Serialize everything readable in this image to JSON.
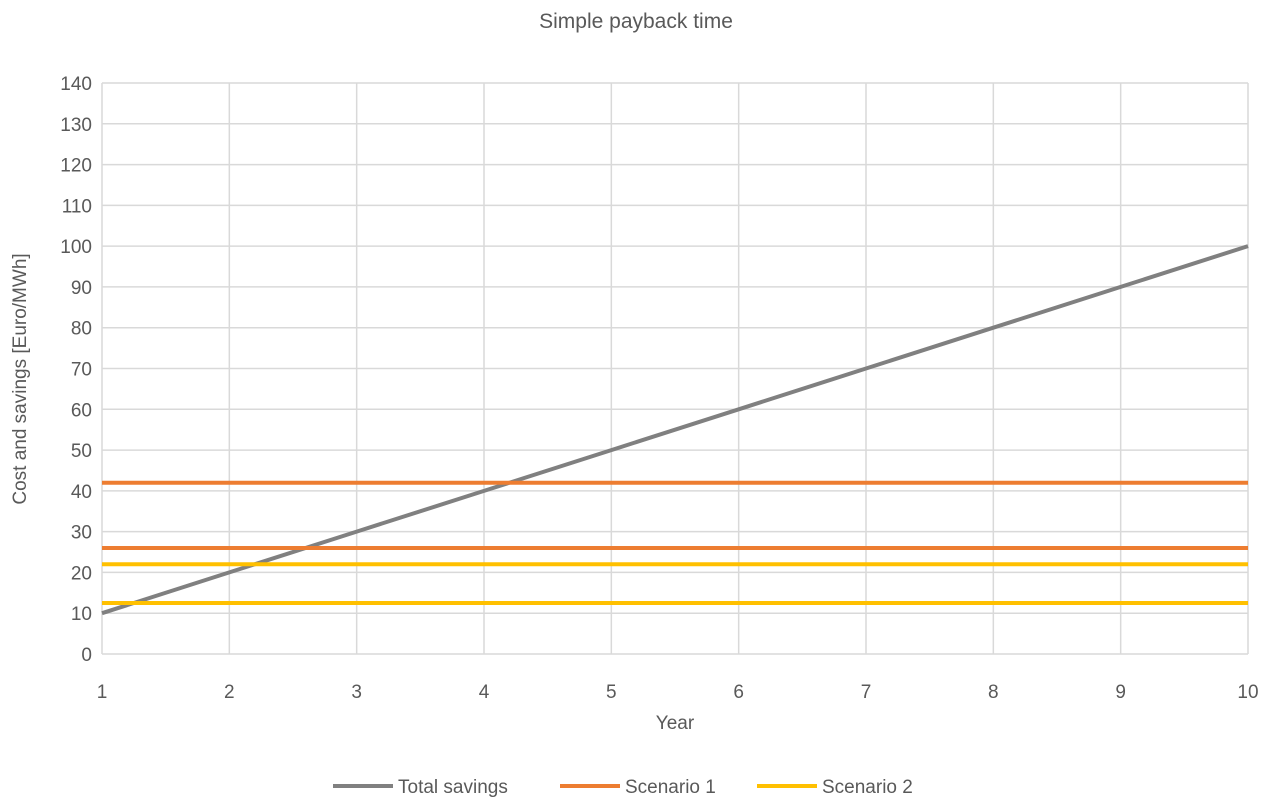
{
  "chart_data": {
    "type": "line",
    "title": "Simple payback time",
    "xlabel": "Year",
    "ylabel": "Cost and savings [Euro/MWh]",
    "x": [
      1,
      2,
      3,
      4,
      5,
      6,
      7,
      8,
      9,
      10
    ],
    "xlim": [
      1,
      10
    ],
    "ylim": [
      0,
      140
    ],
    "x_ticks": [
      1,
      2,
      3,
      4,
      5,
      6,
      7,
      8,
      9,
      10
    ],
    "y_ticks": [
      0,
      10,
      20,
      30,
      40,
      50,
      60,
      70,
      80,
      90,
      100,
      110,
      120,
      130,
      140
    ],
    "grid": true,
    "legend_position": "bottom",
    "legend": [
      {
        "name": "Total savings",
        "color": "#808080"
      },
      {
        "name": "Scenario 1",
        "color": "#ed7d31"
      },
      {
        "name": "Scenario 2",
        "color": "#ffc000"
      }
    ],
    "series": [
      {
        "name": "Total savings",
        "color": "#808080",
        "values": [
          10,
          20,
          30,
          40,
          50,
          60,
          70,
          80,
          90,
          100
        ]
      },
      {
        "name": "Scenario 1",
        "color": "#ed7d31",
        "values": [
          42,
          42,
          42,
          42,
          42,
          42,
          42,
          42,
          42,
          42
        ]
      },
      {
        "name": "Scenario 1",
        "color": "#ed7d31",
        "values": [
          26,
          26,
          26,
          26,
          26,
          26,
          26,
          26,
          26,
          26
        ]
      },
      {
        "name": "Scenario 2",
        "color": "#ffc000",
        "values": [
          22,
          22,
          22,
          22,
          22,
          22,
          22,
          22,
          22,
          22
        ]
      },
      {
        "name": "Scenario 2",
        "color": "#ffc000",
        "values": [
          12.5,
          12.5,
          12.5,
          12.5,
          12.5,
          12.5,
          12.5,
          12.5,
          12.5,
          12.5
        ]
      }
    ]
  }
}
